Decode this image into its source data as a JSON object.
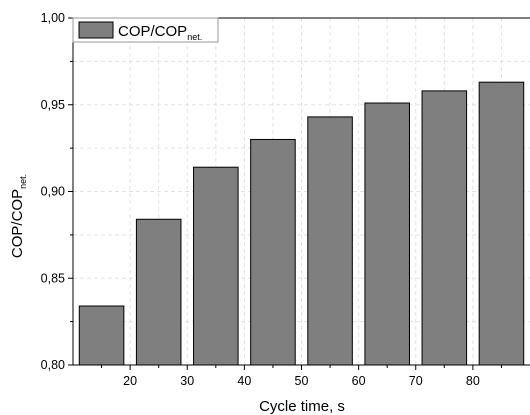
{
  "chart_data": {
    "type": "bar",
    "categories": [
      "15",
      "25",
      "35",
      "45",
      "55",
      "65",
      "75",
      "85"
    ],
    "values": [
      0.834,
      0.884,
      0.914,
      0.93,
      0.943,
      0.951,
      0.958,
      0.963
    ],
    "series": [
      {
        "name": "COP/COP_net.",
        "values": [
          0.834,
          0.884,
          0.914,
          0.93,
          0.943,
          0.951,
          0.958,
          0.963
        ]
      }
    ],
    "xlabel": "Cycle time, s",
    "ylabel": "COP/COP_net.",
    "ylim": [
      0.8,
      1.0
    ],
    "xlim": [
      10,
      90
    ],
    "x_ticks": [
      "20",
      "30",
      "40",
      "50",
      "60",
      "70",
      "80"
    ],
    "y_ticks": [
      "0,80",
      "0,85",
      "0,90",
      "0,95",
      "1,00"
    ],
    "grid": true,
    "legend_position": "top-left",
    "bar_color": "#7f7f7f",
    "edge_color": "#000000"
  },
  "legend": {
    "label_main": "COP/COP",
    "label_sub": "net."
  },
  "axes": {
    "xlabel": "Cycle time, s",
    "ylabel_main": "COP/COP",
    "ylabel_sub": "net."
  }
}
